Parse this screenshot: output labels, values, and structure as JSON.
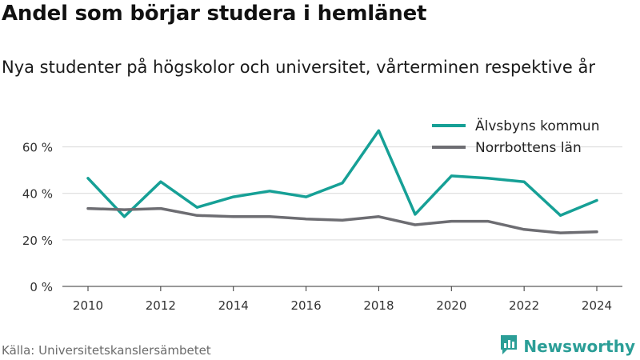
{
  "title": "Andel som börjar studera i hemlänet",
  "subtitle": "Nya studenter på högskolor och universitet, vårterminen respektive år",
  "source": "Källa: Universitetskanslersämbetet",
  "brand": {
    "name": "Newsworthy",
    "icon": "newsworthy-logo-icon",
    "color": "#2b9e97"
  },
  "chart_data": {
    "type": "line",
    "x": [
      2010,
      2011,
      2012,
      2013,
      2014,
      2015,
      2016,
      2017,
      2018,
      2019,
      2020,
      2021,
      2022,
      2023,
      2024
    ],
    "xticks": [
      2010,
      2012,
      2014,
      2016,
      2018,
      2020,
      2022,
      2024
    ],
    "xticklabels": [
      "2010",
      "2012",
      "2014",
      "2016",
      "2018",
      "2020",
      "2022",
      "2024"
    ],
    "ylim": [
      0,
      75
    ],
    "yticks": [
      0,
      20,
      40,
      60
    ],
    "yticklabels": [
      "0 %",
      "20 %",
      "40 %",
      "60 %"
    ],
    "grid": "horizontal",
    "legend_position": "top-right",
    "series": [
      {
        "name": "Älvsbyns kommun",
        "color": "#16a096",
        "values": [
          46.5,
          30,
          45,
          34,
          38.5,
          41,
          38.5,
          44.5,
          67,
          31,
          47.5,
          46.5,
          45,
          30.5,
          37
        ]
      },
      {
        "name": "Norrbottens län",
        "color": "#6d6d72",
        "values": [
          33.5,
          33,
          33.5,
          30.5,
          30,
          30,
          29,
          28.5,
          30,
          26.5,
          28,
          28,
          24.5,
          23,
          23.5
        ]
      }
    ]
  }
}
